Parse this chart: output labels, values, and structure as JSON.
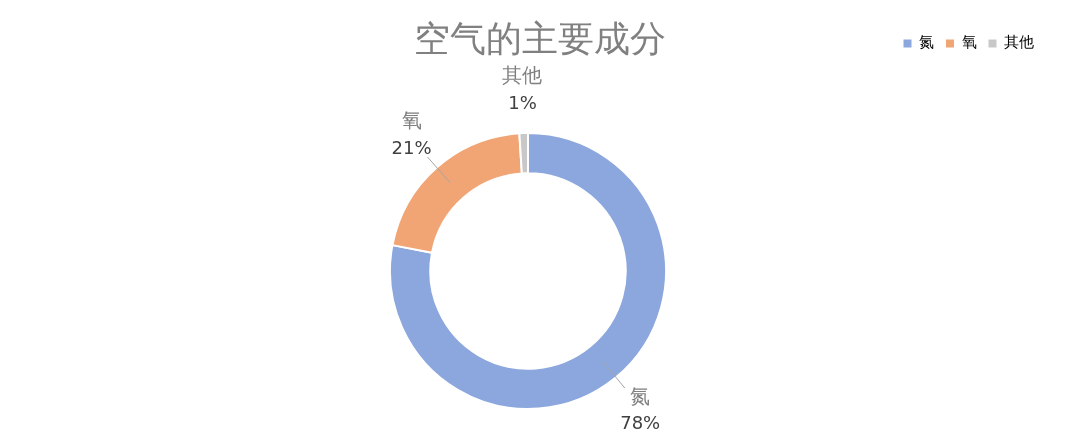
{
  "chart_data": {
    "type": "donut",
    "title": "空气的主要成分",
    "categories": [
      "氮",
      "氧",
      "其他"
    ],
    "values": [
      78,
      21,
      1
    ],
    "colors": [
      "#8ba7dd",
      "#f2a574",
      "#c8c8c8"
    ],
    "value_labels": [
      "78%",
      "21%",
      "1%"
    ],
    "legend": "top right"
  }
}
